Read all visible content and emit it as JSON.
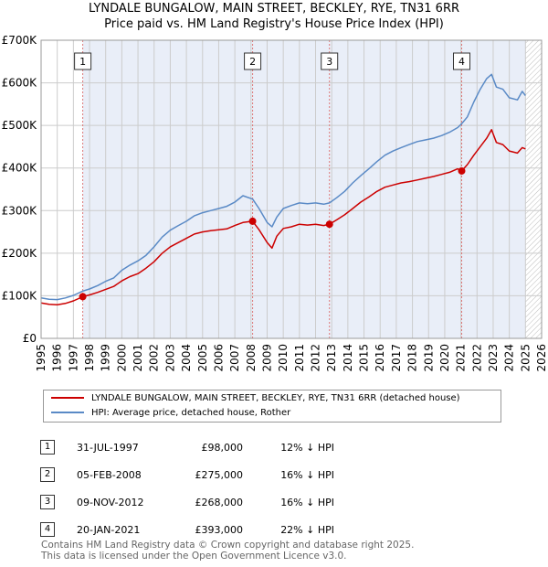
{
  "title_line1": "LYNDALE BUNGALOW, MAIN STREET, BECKLEY, RYE, TN31 6RR",
  "title_line2": "Price paid vs. HM Land Registry's House Price Index (HPI)",
  "colors": {
    "property": "#cc0000",
    "hpi": "#5a8ac6",
    "shade": "#e9eef8",
    "marker_line": "#dd7777",
    "grid": "#cccccc"
  },
  "chart_data": {
    "type": "line",
    "title": "Price paid vs. HM Land Registry's House Price Index (HPI)",
    "xlabel": "",
    "ylabel": "",
    "xlim": [
      1995,
      2026
    ],
    "ylim": [
      0,
      700000
    ],
    "y_ticks": [
      {
        "value": 0,
        "label": "£0"
      },
      {
        "value": 100000,
        "label": "£100K"
      },
      {
        "value": 200000,
        "label": "£200K"
      },
      {
        "value": 300000,
        "label": "£300K"
      },
      {
        "value": 400000,
        "label": "£400K"
      },
      {
        "value": 500000,
        "label": "£500K"
      },
      {
        "value": 600000,
        "label": "£600K"
      },
      {
        "value": 700000,
        "label": "£700K"
      }
    ],
    "x_ticks": [
      "1995",
      "1996",
      "1997",
      "1998",
      "1999",
      "2000",
      "2001",
      "2002",
      "2003",
      "2004",
      "2005",
      "2006",
      "2007",
      "2008",
      "2009",
      "2010",
      "2011",
      "2012",
      "2013",
      "2014",
      "2015",
      "2016",
      "2017",
      "2018",
      "2019",
      "2020",
      "2021",
      "2022",
      "2023",
      "2024",
      "2025",
      "2026"
    ],
    "shaded_from": 1997.58,
    "hatched_from": 2025.0,
    "series": [
      {
        "name": "LYNDALE BUNGALOW, MAIN STREET, BECKLEY, RYE, TN31 6RR (detached house)",
        "color": "#cc0000",
        "x": [
          1995.0,
          1995.5,
          1996.0,
          1996.5,
          1997.0,
          1997.58,
          1998.0,
          1998.5,
          1999.0,
          1999.5,
          2000.0,
          2000.5,
          2001.0,
          2001.5,
          2002.0,
          2002.5,
          2003.0,
          2003.5,
          2004.0,
          2004.5,
          2005.0,
          2005.5,
          2006.0,
          2006.5,
          2007.0,
          2007.5,
          2008.1,
          2008.5,
          2009.0,
          2009.3,
          2009.6,
          2010.0,
          2010.5,
          2011.0,
          2011.5,
          2012.0,
          2012.5,
          2012.86,
          2013.3,
          2013.8,
          2014.3,
          2014.8,
          2015.3,
          2015.8,
          2016.3,
          2016.8,
          2017.3,
          2017.8,
          2018.3,
          2018.8,
          2019.3,
          2019.8,
          2020.3,
          2020.8,
          2021.05,
          2021.4,
          2021.8,
          2022.2,
          2022.6,
          2022.9,
          2023.2,
          2023.6,
          2024.0,
          2024.5,
          2024.8,
          2025.0
        ],
        "values": [
          83000,
          80000,
          79000,
          82000,
          88000,
          98000,
          102000,
          108000,
          115000,
          122000,
          135000,
          145000,
          152000,
          165000,
          180000,
          200000,
          215000,
          225000,
          235000,
          245000,
          250000,
          253000,
          255000,
          257000,
          265000,
          272000,
          275000,
          255000,
          225000,
          212000,
          240000,
          258000,
          262000,
          268000,
          266000,
          268000,
          265000,
          268000,
          278000,
          290000,
          305000,
          320000,
          332000,
          345000,
          355000,
          360000,
          365000,
          368000,
          372000,
          376000,
          380000,
          385000,
          390000,
          398000,
          393000,
          408000,
          430000,
          450000,
          470000,
          490000,
          460000,
          455000,
          440000,
          435000,
          448000,
          445000
        ]
      },
      {
        "name": "HPI: Average price, detached house, Rother",
        "color": "#5a8ac6",
        "x": [
          1995.0,
          1995.5,
          1996.0,
          1996.5,
          1997.0,
          1997.58,
          1998.0,
          1998.5,
          1999.0,
          1999.5,
          2000.0,
          2000.5,
          2001.0,
          2001.5,
          2002.0,
          2002.5,
          2003.0,
          2003.5,
          2004.0,
          2004.5,
          2005.0,
          2005.5,
          2006.0,
          2006.5,
          2007.0,
          2007.5,
          2008.1,
          2008.5,
          2009.0,
          2009.3,
          2009.6,
          2010.0,
          2010.5,
          2011.0,
          2011.5,
          2012.0,
          2012.5,
          2012.86,
          2013.3,
          2013.8,
          2014.3,
          2014.8,
          2015.3,
          2015.8,
          2016.3,
          2016.8,
          2017.3,
          2017.8,
          2018.3,
          2018.8,
          2019.3,
          2019.8,
          2020.3,
          2020.8,
          2021.05,
          2021.4,
          2021.8,
          2022.2,
          2022.6,
          2022.9,
          2023.2,
          2023.6,
          2024.0,
          2024.5,
          2024.8,
          2025.0
        ],
        "values": [
          95000,
          92000,
          91000,
          95000,
          101000,
          111000,
          116000,
          124000,
          134000,
          142000,
          160000,
          172000,
          182000,
          195000,
          215000,
          238000,
          254000,
          265000,
          275000,
          288000,
          295000,
          300000,
          305000,
          310000,
          320000,
          335000,
          327000,
          305000,
          272000,
          262000,
          285000,
          305000,
          312000,
          318000,
          316000,
          318000,
          315000,
          318000,
          330000,
          345000,
          365000,
          382000,
          398000,
          415000,
          430000,
          440000,
          448000,
          455000,
          462000,
          466000,
          470000,
          476000,
          484000,
          495000,
          504000,
          520000,
          555000,
          585000,
          610000,
          620000,
          590000,
          585000,
          565000,
          560000,
          580000,
          570000
        ]
      }
    ],
    "markers": [
      {
        "num": "1",
        "x": 1997.58,
        "value": 98000
      },
      {
        "num": "2",
        "x": 2008.1,
        "value": 275000
      },
      {
        "num": "3",
        "x": 2012.86,
        "value": 268000
      },
      {
        "num": "4",
        "x": 2021.05,
        "value": 393000
      }
    ]
  },
  "legend": [
    {
      "label": "LYNDALE BUNGALOW, MAIN STREET, BECKLEY, RYE, TN31 6RR (detached house)",
      "color": "#cc0000"
    },
    {
      "label": "HPI: Average price, detached house, Rother",
      "color": "#5a8ac6"
    }
  ],
  "sales": [
    {
      "num": "1",
      "date": "31-JUL-1997",
      "price": "£98,000",
      "hpi": "12% ↓ HPI"
    },
    {
      "num": "2",
      "date": "05-FEB-2008",
      "price": "£275,000",
      "hpi": "16% ↓ HPI"
    },
    {
      "num": "3",
      "date": "09-NOV-2012",
      "price": "£268,000",
      "hpi": "16% ↓ HPI"
    },
    {
      "num": "4",
      "date": "20-JAN-2021",
      "price": "£393,000",
      "hpi": "22% ↓ HPI"
    }
  ],
  "footer_line1": "Contains HM Land Registry data © Crown copyright and database right 2025.",
  "footer_line2": "This data is licensed under the Open Government Licence v3.0."
}
